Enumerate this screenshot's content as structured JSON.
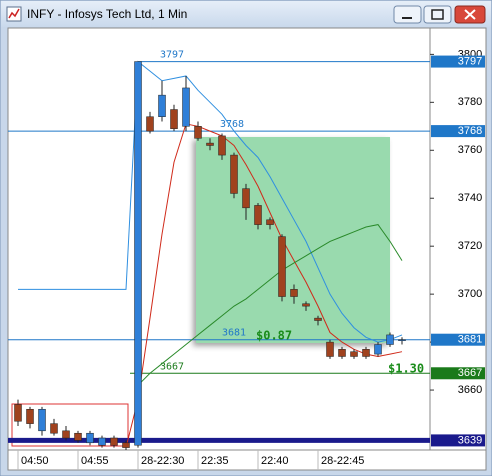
{
  "chart_data": {
    "type": "candlestick",
    "title": "INFY - Infosys Tech Ltd, 1 Min",
    "categories": [
      "04:50",
      null,
      null,
      null,
      null,
      "04:55",
      null,
      null,
      null,
      null,
      "28-22:30",
      null,
      null,
      null,
      null,
      "22:35",
      null,
      null,
      null,
      null,
      "22:40",
      null,
      null,
      null,
      null,
      "28-22:45",
      null,
      null,
      null,
      null,
      null,
      null,
      null
    ],
    "open": [
      3654,
      3652,
      3643,
      3646,
      3643,
      3642,
      3638,
      3637,
      3640,
      3638,
      3637,
      3774,
      3774,
      3777,
      3770,
      3770,
      3763,
      3766,
      3758,
      3744,
      3737,
      3731,
      3724,
      3702,
      3696,
      3690,
      3680,
      3677,
      3676,
      3677,
      3675,
      3679,
      3681
    ],
    "high": [
      3656,
      3653,
      3653,
      3648,
      3645,
      3643,
      3643,
      3641,
      3641,
      3639,
      3797,
      3776,
      3789,
      3779,
      3791,
      3772,
      3765,
      3767,
      3759,
      3746,
      3738,
      3732,
      3725,
      3704,
      3697,
      3691,
      3681,
      3678,
      3677,
      3678,
      3680,
      3684,
      3682
    ],
    "low": [
      3645,
      3644,
      3641,
      3641,
      3639,
      3638,
      3637,
      3636,
      3636,
      3635,
      3636,
      3767,
      3772,
      3768,
      3768,
      3764,
      3760,
      3756,
      3740,
      3731,
      3727,
      3727,
      3697,
      3696,
      3693,
      3687,
      3673,
      3673,
      3673,
      3673,
      3674,
      3678,
      3679
    ],
    "close": [
      3647,
      3646,
      3652,
      3642,
      3640,
      3639,
      3642,
      3640,
      3637,
      3636,
      3797,
      3768,
      3783,
      3769,
      3786,
      3765,
      3762,
      3758,
      3742,
      3736,
      3729,
      3729,
      3699,
      3699,
      3695,
      3689,
      3674,
      3674,
      3674,
      3674,
      3679,
      3683,
      3681
    ],
    "up_color": "#2f7fd8",
    "down_color": "#a0421e",
    "lines": [
      {
        "color": "#2f8fe0",
        "values": [
          3702,
          3702,
          3702,
          3702,
          3702,
          3702,
          3702,
          3702,
          3702,
          3702,
          3797,
          3793,
          3789,
          3790,
          3791,
          3785,
          3780,
          3775,
          3768,
          3762,
          3757,
          3749,
          3740,
          3731,
          3722,
          3711,
          3700,
          3692,
          3686,
          3682,
          3680,
          3681,
          3683
        ]
      },
      {
        "color": "#d02a1a",
        "values": [
          null,
          null,
          null,
          null,
          null,
          null,
          null,
          null,
          null,
          3636,
          3656,
          3690,
          3725,
          3755,
          3771,
          3770,
          3768,
          3766,
          3762,
          3754,
          3745,
          3734,
          3723,
          3714,
          3705,
          3695,
          3684,
          3680,
          3677,
          3675,
          3674,
          3675,
          3676
        ]
      },
      {
        "color": "#2a8a2a",
        "values": [
          null,
          null,
          null,
          null,
          null,
          null,
          null,
          null,
          null,
          null,
          3662,
          3667,
          3671,
          3675,
          3679,
          3683,
          3687,
          3691,
          3695,
          3698,
          3702,
          3706,
          3710,
          3713,
          3716,
          3719,
          3722,
          3724,
          3726,
          3728,
          3729,
          3722,
          3714
        ]
      }
    ],
    "levels": [
      {
        "value": 3797,
        "color": "#1f77c8"
      },
      {
        "value": 3768,
        "color": "#1f77c8"
      },
      {
        "value": 3681,
        "color": "#1f77c8"
      },
      {
        "value": 3667,
        "color": "#1a7a1a"
      },
      {
        "value": 3639,
        "color": "#1a1a8c"
      }
    ],
    "annotations": [
      {
        "text": "$0.87",
        "color": "#1a8c1a"
      },
      {
        "text": "$1.30",
        "color": "#1a8c1a"
      }
    ],
    "ylim": [
      3635,
      3811
    ],
    "yticks": [
      3660,
      3680,
      3700,
      3720,
      3740,
      3760,
      3780,
      3800
    ]
  }
}
